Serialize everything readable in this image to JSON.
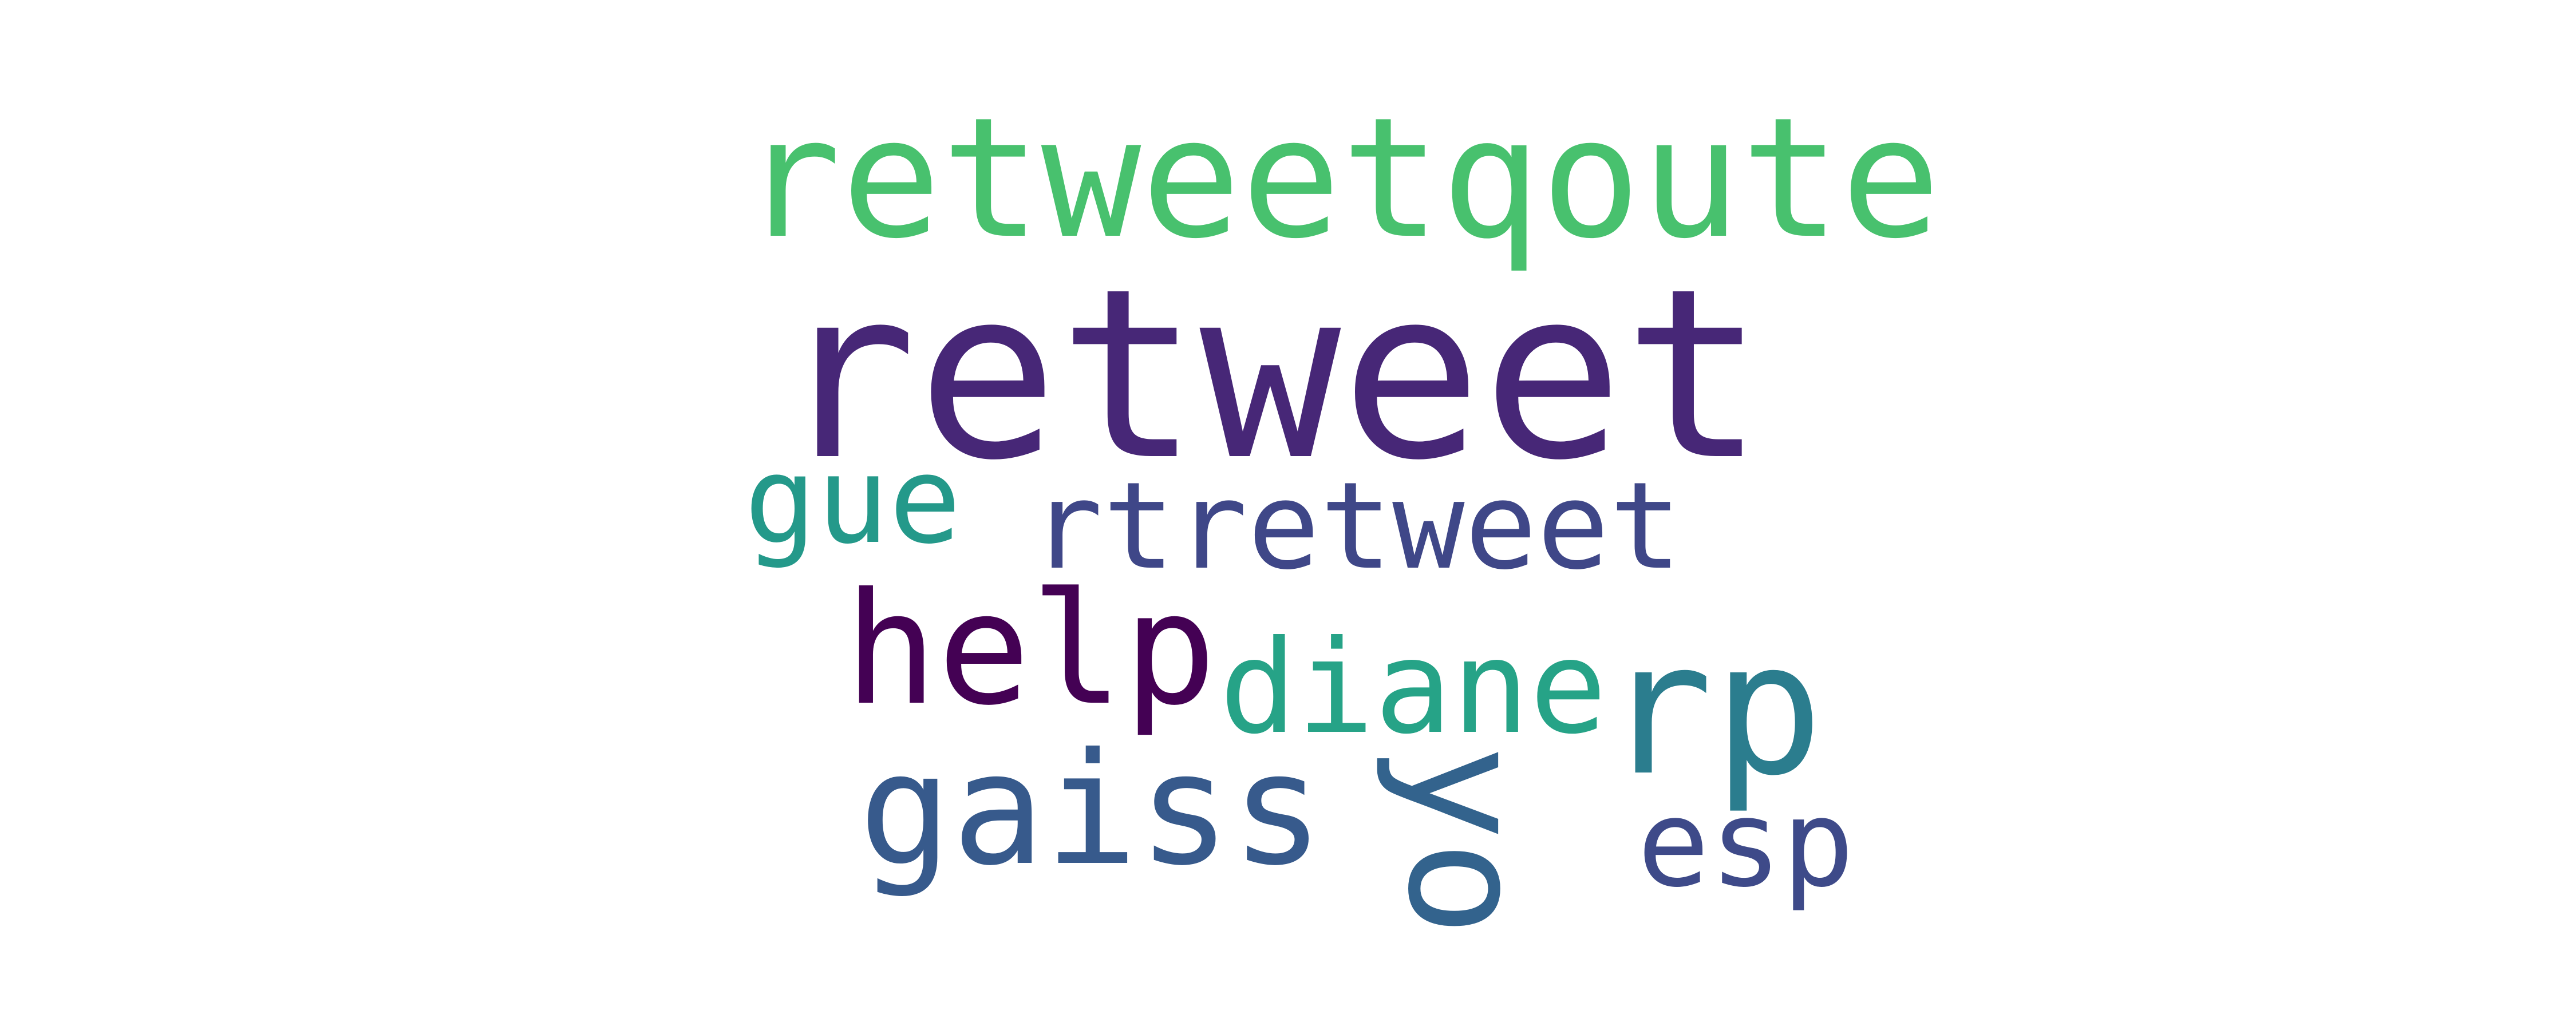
{
  "words": {
    "retweetqoute": {
      "text": "retweetqoute",
      "color": "#48c16e"
    },
    "retweet": {
      "text": "retweet",
      "color": "#472777"
    },
    "rtretweet": {
      "text": "rtretweet",
      "color": "#3f4788"
    },
    "gue": {
      "text": "gue",
      "color": "#24998a"
    },
    "help": {
      "text": "help",
      "color": "#440154"
    },
    "diane": {
      "text": "diane",
      "color": "#26a387"
    },
    "rp": {
      "text": "rp",
      "color": "#2b7d8e"
    },
    "gaiss": {
      "text": "gaiss",
      "color": "#375a8c"
    },
    "esp": {
      "text": "esp",
      "color": "#3e4a89"
    },
    "yo": {
      "text": "yo",
      "color": "#33638d"
    }
  }
}
